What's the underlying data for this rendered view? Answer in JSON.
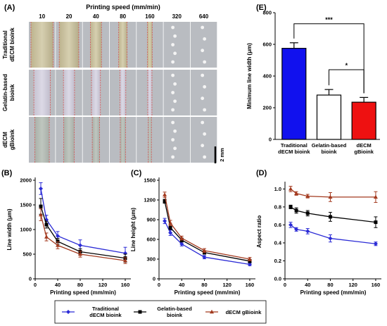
{
  "panel_a": {
    "label": "(A)",
    "title": "Printing speed (mm/min)",
    "speeds": [
      "10",
      "20",
      "40",
      "80",
      "160",
      "320",
      "640"
    ],
    "rows": [
      {
        "label": [
          "Traditional",
          "dECM bioink"
        ]
      },
      {
        "label": [
          "Gelatin-based",
          "bioink"
        ]
      },
      {
        "label": [
          "dECM",
          "gBioink"
        ]
      }
    ],
    "scale_bar": "2 mm",
    "colors": {
      "guide_lines": "#d9534f",
      "tile_bg": "#b9bcc1"
    }
  },
  "legend": [
    {
      "label": [
        "Traditional",
        "dECM bioink"
      ],
      "color": "#2b2bd6",
      "marker": "diamond"
    },
    {
      "label": [
        "Gelatin-based",
        "bioink"
      ],
      "color": "#000000",
      "marker": "square"
    },
    {
      "label": [
        "dECM gBioink"
      ],
      "color": "#a33a1f",
      "marker": "triangle"
    }
  ],
  "chart_data": [
    {
      "panel": "(B)",
      "type": "line",
      "xlabel": "Printing speed (mm/min)",
      "ylabel": "Line width (μm)",
      "xlim": [
        0,
        170
      ],
      "ylim": [
        0,
        2000
      ],
      "xticks": [
        0,
        40,
        80,
        120,
        160
      ],
      "yticks": [
        0,
        500,
        1000,
        1500,
        2000
      ],
      "x": [
        10,
        20,
        40,
        80,
        160
      ],
      "series": [
        {
          "name": "Traditional dECM bioink",
          "values": [
            1830,
            1200,
            870,
            680,
            520
          ],
          "errors": [
            120,
            90,
            90,
            110,
            120
          ]
        },
        {
          "name": "Gelatin-based bioink",
          "values": [
            1470,
            1100,
            760,
            550,
            420
          ],
          "errors": [
            160,
            70,
            60,
            60,
            80
          ]
        },
        {
          "name": "dECM gBioink",
          "values": [
            1300,
            850,
            680,
            500,
            370
          ],
          "errors": [
            120,
            80,
            70,
            60,
            60
          ]
        }
      ]
    },
    {
      "panel": "(C)",
      "type": "line",
      "xlabel": "Printing speed (mm/min)",
      "ylabel": "Line height (μm)",
      "xlim": [
        0,
        170
      ],
      "ylim": [
        0,
        1500
      ],
      "xticks": [
        0,
        40,
        80,
        120,
        160
      ],
      "yticks": [
        0,
        300,
        600,
        900,
        1200,
        1500
      ],
      "x": [
        10,
        20,
        40,
        80,
        160
      ],
      "series": [
        {
          "name": "Traditional dECM bioink",
          "values": [
            880,
            700,
            530,
            330,
            220
          ],
          "errors": [
            40,
            40,
            30,
            25,
            20
          ]
        },
        {
          "name": "Gelatin-based bioink",
          "values": [
            1180,
            780,
            590,
            400,
            270
          ],
          "errors": [
            30,
            30,
            30,
            25,
            25
          ]
        },
        {
          "name": "dECM gBioink",
          "values": [
            1280,
            850,
            620,
            430,
            300
          ],
          "errors": [
            40,
            40,
            30,
            30,
            25
          ]
        }
      ]
    },
    {
      "panel": "(D)",
      "type": "line",
      "xlabel": "Printing speed (mm/min)",
      "ylabel": "Aspect ratio",
      "xlim": [
        0,
        170
      ],
      "ylim": [
        0,
        1.05
      ],
      "xticks": [
        0,
        40,
        80,
        120,
        160
      ],
      "yticks": [
        0.0,
        0.2,
        0.4,
        0.6,
        0.8,
        1.0
      ],
      "x": [
        10,
        20,
        40,
        80,
        160
      ],
      "series": [
        {
          "name": "Traditional dECM bioink",
          "values": [
            0.6,
            0.55,
            0.53,
            0.45,
            0.39
          ],
          "errors": [
            0.03,
            0.02,
            0.03,
            0.04,
            0.02
          ]
        },
        {
          "name": "Gelatin-based bioink",
          "values": [
            0.8,
            0.76,
            0.73,
            0.69,
            0.63
          ],
          "errors": [
            0.02,
            0.03,
            0.03,
            0.05,
            0.06
          ]
        },
        {
          "name": "dECM gBioink",
          "values": [
            1.0,
            0.95,
            0.92,
            0.91,
            0.91
          ],
          "errors": [
            0.03,
            0.02,
            0.02,
            0.05,
            0.06
          ]
        }
      ]
    },
    {
      "panel": "(E)",
      "type": "bar",
      "ylabel": "Minimum line width (μm)",
      "ylim": [
        0,
        800
      ],
      "yticks": [
        0,
        200,
        400,
        600,
        800
      ],
      "categories": [
        [
          "Traditional",
          "dECM bioink"
        ],
        [
          "Gelatin-based",
          "bioink"
        ],
        [
          "dECM",
          "gBioink"
        ]
      ],
      "values": [
        575,
        280,
        235
      ],
      "errors": [
        35,
        35,
        30
      ],
      "fills": [
        "#1111ee",
        "#ffffff",
        "#ee1111"
      ],
      "significance": [
        {
          "from": 0,
          "to": 2,
          "label": "***"
        },
        {
          "from": 1,
          "to": 2,
          "label": "*"
        }
      ]
    }
  ]
}
